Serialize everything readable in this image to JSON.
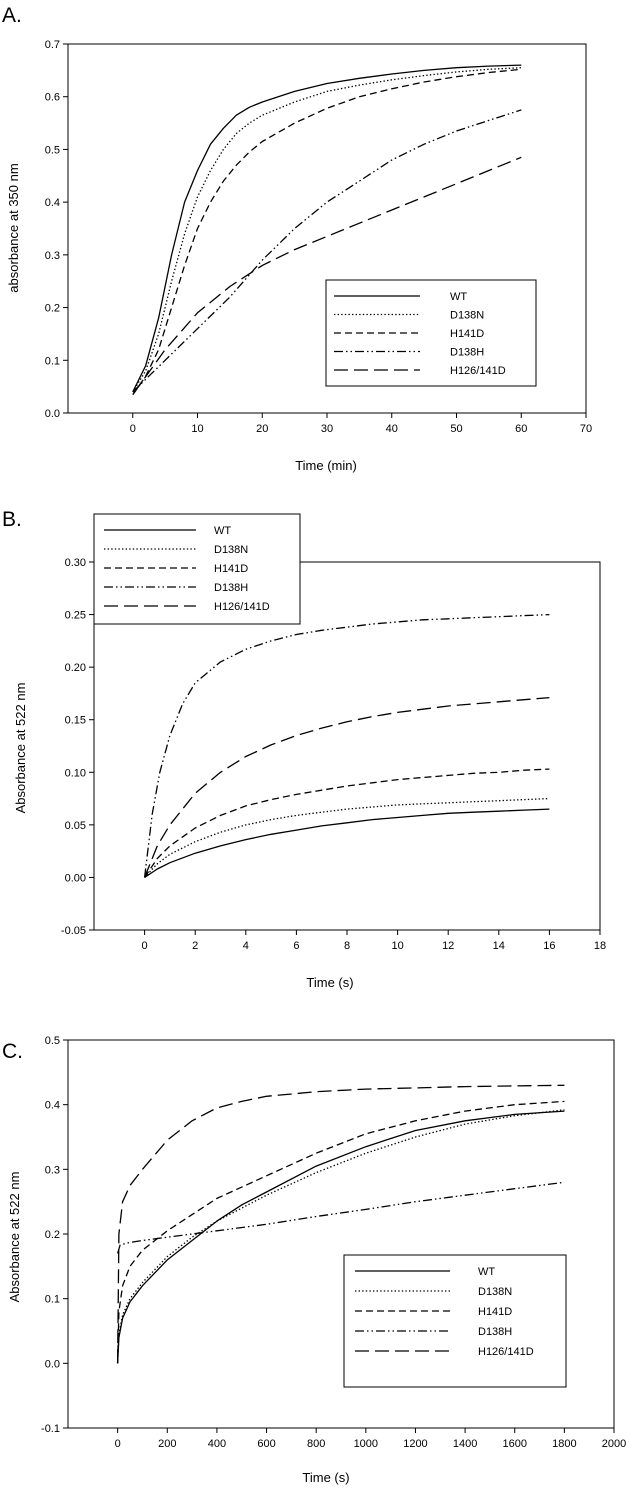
{
  "chart_data": [
    {
      "panel": "A.",
      "type": "line",
      "xlabel": "Time (min)",
      "ylabel": "absorbance at 350 nm",
      "xlim": [
        -10,
        70
      ],
      "ylim": [
        0.0,
        0.7
      ],
      "xticks": [
        "0",
        "10",
        "20",
        "30",
        "40",
        "50",
        "60",
        "70"
      ],
      "yticks": [
        "0.0",
        "0.1",
        "0.2",
        "0.3",
        "0.4",
        "0.5",
        "0.6",
        "0.7"
      ],
      "grid": false,
      "legend": "bottom-right",
      "series": [
        {
          "name": "WT",
          "style": "solid",
          "x": [
            0,
            2,
            4,
            6,
            8,
            10,
            12,
            14,
            16,
            18,
            20,
            25,
            30,
            35,
            40,
            45,
            50,
            55,
            60
          ],
          "y": [
            0.04,
            0.09,
            0.18,
            0.3,
            0.4,
            0.46,
            0.51,
            0.54,
            0.565,
            0.58,
            0.59,
            0.61,
            0.625,
            0.635,
            0.643,
            0.65,
            0.655,
            0.658,
            0.66
          ]
        },
        {
          "name": "D138N",
          "style": "dotted",
          "x": [
            0,
            2,
            4,
            6,
            8,
            10,
            12,
            14,
            16,
            18,
            20,
            25,
            30,
            35,
            40,
            45,
            50,
            55,
            60
          ],
          "y": [
            0.04,
            0.08,
            0.15,
            0.25,
            0.34,
            0.41,
            0.46,
            0.5,
            0.53,
            0.55,
            0.565,
            0.59,
            0.61,
            0.622,
            0.632,
            0.64,
            0.647,
            0.652,
            0.655
          ]
        },
        {
          "name": "H141D",
          "style": "dashed",
          "x": [
            0,
            2,
            4,
            6,
            8,
            10,
            12,
            14,
            16,
            18,
            20,
            25,
            30,
            35,
            40,
            45,
            50,
            55,
            60
          ],
          "y": [
            0.035,
            0.07,
            0.12,
            0.2,
            0.28,
            0.35,
            0.4,
            0.44,
            0.47,
            0.495,
            0.515,
            0.55,
            0.578,
            0.6,
            0.615,
            0.628,
            0.638,
            0.646,
            0.652
          ]
        },
        {
          "name": "D138H",
          "style": "dash-dot-dot",
          "x": [
            0,
            5,
            10,
            15,
            20,
            25,
            30,
            35,
            40,
            45,
            50,
            55,
            60
          ],
          "y": [
            0.04,
            0.1,
            0.16,
            0.22,
            0.29,
            0.35,
            0.4,
            0.44,
            0.48,
            0.51,
            0.535,
            0.555,
            0.575
          ]
        },
        {
          "name": "H126/141D",
          "style": "long-dash",
          "x": [
            0,
            5,
            10,
            15,
            20,
            25,
            30,
            35,
            40,
            45,
            50,
            55,
            60
          ],
          "y": [
            0.035,
            0.12,
            0.19,
            0.24,
            0.28,
            0.31,
            0.335,
            0.36,
            0.385,
            0.41,
            0.435,
            0.46,
            0.485
          ]
        }
      ]
    },
    {
      "panel": "B.",
      "type": "line",
      "xlabel": "Time (s)",
      "ylabel": "Absorbance at 522 nm",
      "xlim": [
        -2,
        18
      ],
      "ylim": [
        -0.05,
        0.3
      ],
      "xticks": [
        "0",
        "2",
        "4",
        "6",
        "8",
        "10",
        "12",
        "14",
        "16",
        "18"
      ],
      "yticks": [
        "-0.05",
        "0.00",
        "0.05",
        "0.10",
        "0.15",
        "0.20",
        "0.25",
        "0.30"
      ],
      "grid": false,
      "legend": "top-left",
      "series": [
        {
          "name": "WT",
          "style": "solid",
          "x": [
            0,
            0.5,
            1,
            2,
            3,
            4,
            5,
            6,
            7,
            8,
            9,
            10,
            11,
            12,
            13,
            14,
            15,
            16
          ],
          "y": [
            0.0,
            0.008,
            0.014,
            0.023,
            0.03,
            0.036,
            0.041,
            0.045,
            0.049,
            0.052,
            0.055,
            0.057,
            0.059,
            0.061,
            0.062,
            0.063,
            0.064,
            0.065
          ]
        },
        {
          "name": "D138N",
          "style": "dotted",
          "x": [
            0,
            0.5,
            1,
            2,
            3,
            4,
            5,
            6,
            7,
            8,
            9,
            10,
            11,
            12,
            13,
            14,
            15,
            16
          ],
          "y": [
            0.0,
            0.013,
            0.022,
            0.034,
            0.043,
            0.05,
            0.055,
            0.059,
            0.062,
            0.065,
            0.067,
            0.069,
            0.07,
            0.071,
            0.072,
            0.073,
            0.074,
            0.075
          ]
        },
        {
          "name": "H141D",
          "style": "dashed",
          "x": [
            0,
            0.5,
            1,
            2,
            3,
            4,
            5,
            6,
            7,
            8,
            9,
            10,
            11,
            12,
            13,
            14,
            15,
            16
          ],
          "y": [
            0.0,
            0.018,
            0.03,
            0.047,
            0.059,
            0.068,
            0.074,
            0.079,
            0.083,
            0.087,
            0.09,
            0.093,
            0.095,
            0.097,
            0.099,
            0.1,
            0.102,
            0.103
          ]
        },
        {
          "name": "D138H",
          "style": "dash-dot-dot",
          "x": [
            0,
            0.3,
            0.6,
            1,
            1.5,
            2,
            3,
            4,
            5,
            6,
            7,
            8,
            9,
            10,
            11,
            12,
            13,
            14,
            15,
            16
          ],
          "y": [
            0.0,
            0.06,
            0.1,
            0.135,
            0.165,
            0.185,
            0.205,
            0.217,
            0.225,
            0.231,
            0.235,
            0.238,
            0.241,
            0.243,
            0.245,
            0.246,
            0.247,
            0.248,
            0.249,
            0.25
          ]
        },
        {
          "name": "H126/141D",
          "style": "long-dash",
          "x": [
            0,
            0.5,
            1,
            2,
            3,
            4,
            5,
            6,
            7,
            8,
            9,
            10,
            11,
            12,
            13,
            14,
            15,
            16
          ],
          "y": [
            0.0,
            0.03,
            0.05,
            0.08,
            0.1,
            0.115,
            0.126,
            0.135,
            0.142,
            0.148,
            0.153,
            0.157,
            0.16,
            0.163,
            0.165,
            0.167,
            0.169,
            0.171
          ]
        }
      ]
    },
    {
      "panel": "C.",
      "type": "line",
      "xlabel": "Time (s)",
      "ylabel": "Absorbance at 522 nm",
      "xlim": [
        -200,
        2000
      ],
      "ylim": [
        -0.1,
        0.5
      ],
      "xticks": [
        "0",
        "200",
        "400",
        "600",
        "800",
        "1000",
        "1200",
        "1400",
        "1600",
        "1800",
        "2000"
      ],
      "yticks": [
        "-0.1",
        "0.0",
        "0.1",
        "0.2",
        "0.3",
        "0.4",
        "0.5"
      ],
      "grid": false,
      "legend": "bottom-right",
      "series": [
        {
          "name": "WT",
          "style": "solid",
          "x": [
            0,
            5,
            20,
            50,
            100,
            200,
            300,
            400,
            500,
            600,
            800,
            1000,
            1200,
            1400,
            1600,
            1800
          ],
          "y": [
            0.0,
            0.04,
            0.07,
            0.095,
            0.12,
            0.16,
            0.19,
            0.22,
            0.245,
            0.265,
            0.305,
            0.335,
            0.36,
            0.375,
            0.385,
            0.39
          ]
        },
        {
          "name": "D138N",
          "style": "dotted",
          "x": [
            0,
            5,
            20,
            50,
            100,
            200,
            300,
            400,
            500,
            600,
            800,
            1000,
            1200,
            1400,
            1600,
            1800
          ],
          "y": [
            0.0,
            0.045,
            0.075,
            0.1,
            0.125,
            0.165,
            0.195,
            0.22,
            0.24,
            0.26,
            0.295,
            0.325,
            0.35,
            0.37,
            0.383,
            0.392
          ]
        },
        {
          "name": "H141D",
          "style": "dashed",
          "x": [
            0,
            5,
            20,
            50,
            100,
            200,
            300,
            400,
            600,
            800,
            1000,
            1200,
            1400,
            1600,
            1800
          ],
          "y": [
            0.0,
            0.08,
            0.12,
            0.15,
            0.175,
            0.205,
            0.23,
            0.255,
            0.29,
            0.325,
            0.355,
            0.375,
            0.39,
            0.4,
            0.405
          ]
        },
        {
          "name": "D138H",
          "style": "dash-dot-dot",
          "x": [
            0,
            10,
            50,
            100,
            200,
            400,
            600,
            800,
            1000,
            1200,
            1400,
            1600,
            1800
          ],
          "y": [
            0.17,
            0.183,
            0.187,
            0.19,
            0.195,
            0.205,
            0.215,
            0.227,
            0.238,
            0.25,
            0.26,
            0.27,
            0.28
          ]
        },
        {
          "name": "H126/141D",
          "style": "long-dash",
          "x": [
            0,
            5,
            20,
            50,
            100,
            200,
            300,
            400,
            500,
            600,
            800,
            1000,
            1200,
            1400,
            1600,
            1800
          ],
          "y": [
            0.0,
            0.2,
            0.25,
            0.275,
            0.3,
            0.345,
            0.375,
            0.395,
            0.405,
            0.413,
            0.42,
            0.424,
            0.426,
            0.428,
            0.429,
            0.43
          ]
        }
      ]
    }
  ],
  "colors": {
    "line": "#000000",
    "background": "#ffffff"
  }
}
